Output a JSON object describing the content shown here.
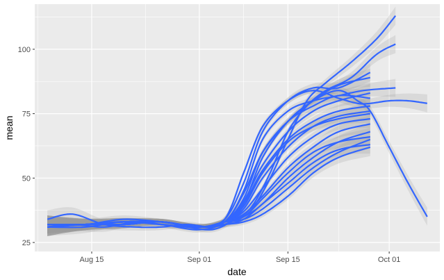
{
  "chart_data": {
    "type": "line",
    "title": "",
    "xlabel": "date",
    "ylabel": "mean",
    "x_ticks": [
      "Aug 15",
      "Sep 01",
      "Sep 15",
      "Oct 01"
    ],
    "x_tick_dates": [
      "2020-08-15",
      "2020-09-01",
      "2020-09-15",
      "2020-10-01"
    ],
    "xlim": [
      "2020-08-06",
      "2020-10-09"
    ],
    "y_ticks": [
      25,
      50,
      75,
      100
    ],
    "ylim": [
      21.5,
      117.5
    ],
    "grid": true,
    "legend": "none",
    "smoothing": "loess fit with grey confidence band",
    "line_color": "#3366FF",
    "band_color": "#999999",
    "panel_color": "#EBEBEB",
    "series": [
      {
        "x": [
          "2020-08-08",
          "2020-08-12",
          "2020-08-17",
          "2020-08-22",
          "2020-08-26",
          "2020-08-30",
          "2020-09-03",
          "2020-09-06",
          "2020-09-09",
          "2020-09-12",
          "2020-09-15",
          "2020-09-18",
          "2020-09-21",
          "2020-09-25",
          "2020-09-29",
          "2020-10-02"
        ],
        "y": [
          34,
          36,
          32,
          31,
          31,
          32,
          31,
          33,
          37,
          49,
          65,
          80,
          87,
          95,
          104,
          113
        ]
      },
      {
        "x": [
          "2020-08-08",
          "2020-08-12",
          "2020-08-17",
          "2020-08-22",
          "2020-08-26",
          "2020-08-30",
          "2020-09-03",
          "2020-09-06",
          "2020-09-09",
          "2020-09-12",
          "2020-09-15",
          "2020-09-18",
          "2020-09-21",
          "2020-09-25",
          "2020-09-29",
          "2020-10-02"
        ],
        "y": [
          31,
          32,
          31,
          33,
          32,
          31,
          30,
          33,
          38,
          51,
          68,
          78,
          84,
          89,
          98,
          102
        ]
      },
      {
        "x": [
          "2020-08-08",
          "2020-08-14",
          "2020-08-20",
          "2020-08-26",
          "2020-09-01",
          "2020-09-05",
          "2020-09-08",
          "2020-09-11",
          "2020-09-15",
          "2020-09-19",
          "2020-09-23",
          "2020-09-27",
          "2020-10-02"
        ],
        "y": [
          32,
          32,
          34,
          33,
          31,
          33,
          45,
          65,
          76,
          80,
          82,
          84,
          85
        ]
      },
      {
        "x": [
          "2020-08-08",
          "2020-08-14",
          "2020-08-20",
          "2020-08-26",
          "2020-09-01",
          "2020-09-05",
          "2020-09-08",
          "2020-09-11",
          "2020-09-15",
          "2020-09-19",
          "2020-09-23",
          "2020-09-26",
          "2020-09-28",
          "2020-10-01",
          "2020-10-04",
          "2020-10-07"
        ],
        "y": [
          31,
          31,
          33,
          32,
          30,
          34,
          52,
          70,
          80,
          84,
          81,
          79,
          79,
          80,
          80,
          79
        ]
      },
      {
        "x": [
          "2020-08-08",
          "2020-08-14",
          "2020-08-20",
          "2020-08-26",
          "2020-09-01",
          "2020-09-05",
          "2020-09-08",
          "2020-09-11",
          "2020-09-15",
          "2020-09-19",
          "2020-09-23",
          "2020-09-26",
          "2020-09-28",
          "2020-10-01",
          "2020-10-04",
          "2020-10-07"
        ],
        "y": [
          32,
          32,
          32,
          33,
          31,
          33,
          40,
          58,
          72,
          80,
          84,
          80,
          76,
          62,
          48,
          35
        ]
      },
      {
        "x": [
          "2020-08-08",
          "2020-08-14",
          "2020-08-20",
          "2020-08-26",
          "2020-09-01",
          "2020-09-05",
          "2020-09-08",
          "2020-09-11",
          "2020-09-15",
          "2020-09-19",
          "2020-09-23",
          "2020-09-28"
        ],
        "y": [
          31,
          32,
          33,
          32,
          31,
          34,
          48,
          68,
          80,
          85,
          85,
          91
        ]
      },
      {
        "x": [
          "2020-08-08",
          "2020-08-14",
          "2020-08-20",
          "2020-08-26",
          "2020-09-01",
          "2020-09-05",
          "2020-09-08",
          "2020-09-11",
          "2020-09-15",
          "2020-09-19",
          "2020-09-23",
          "2020-09-28"
        ],
        "y": [
          32,
          32,
          33,
          33,
          31,
          33,
          44,
          60,
          72,
          80,
          86,
          89
        ]
      },
      {
        "x": [
          "2020-08-08",
          "2020-08-14",
          "2020-08-20",
          "2020-08-26",
          "2020-09-01",
          "2020-09-05",
          "2020-09-08",
          "2020-09-11",
          "2020-09-15",
          "2020-09-19",
          "2020-09-23",
          "2020-09-28"
        ],
        "y": [
          31,
          32,
          32,
          33,
          31,
          33,
          41,
          55,
          68,
          76,
          80,
          83
        ]
      },
      {
        "x": [
          "2020-08-08",
          "2020-08-14",
          "2020-08-20",
          "2020-08-26",
          "2020-09-01",
          "2020-09-05",
          "2020-09-08",
          "2020-09-11",
          "2020-09-15",
          "2020-09-19",
          "2020-09-23",
          "2020-09-28"
        ],
        "y": [
          32,
          32,
          33,
          33,
          31,
          33,
          40,
          53,
          65,
          72,
          76,
          78
        ]
      },
      {
        "x": [
          "2020-08-08",
          "2020-08-14",
          "2020-08-20",
          "2020-08-26",
          "2020-09-01",
          "2020-09-05",
          "2020-09-08",
          "2020-09-11",
          "2020-09-15",
          "2020-09-19",
          "2020-09-23",
          "2020-09-28"
        ],
        "y": [
          31,
          32,
          32,
          33,
          31,
          33,
          38,
          50,
          62,
          70,
          74,
          76
        ]
      },
      {
        "x": [
          "2020-08-08",
          "2020-08-14",
          "2020-08-20",
          "2020-08-26",
          "2020-09-01",
          "2020-09-05",
          "2020-09-08",
          "2020-09-11",
          "2020-09-15",
          "2020-09-19",
          "2020-09-23",
          "2020-09-28"
        ],
        "y": [
          32,
          32,
          33,
          33,
          31,
          33,
          37,
          46,
          58,
          66,
          71,
          73
        ]
      },
      {
        "x": [
          "2020-08-08",
          "2020-08-14",
          "2020-08-20",
          "2020-08-26",
          "2020-09-01",
          "2020-09-05",
          "2020-09-08",
          "2020-09-11",
          "2020-09-15",
          "2020-09-19",
          "2020-09-23",
          "2020-09-28"
        ],
        "y": [
          31,
          32,
          32,
          33,
          31,
          33,
          36,
          43,
          54,
          62,
          68,
          71
        ]
      },
      {
        "x": [
          "2020-08-08",
          "2020-08-14",
          "2020-08-20",
          "2020-08-26",
          "2020-09-01",
          "2020-09-05",
          "2020-09-08",
          "2020-09-11",
          "2020-09-15",
          "2020-09-19",
          "2020-09-23",
          "2020-09-28"
        ],
        "y": [
          32,
          32,
          33,
          33,
          31,
          33,
          35,
          40,
          50,
          58,
          64,
          68
        ]
      },
      {
        "x": [
          "2020-08-08",
          "2020-08-14",
          "2020-08-20",
          "2020-08-26",
          "2020-09-01",
          "2020-09-05",
          "2020-09-08",
          "2020-09-11",
          "2020-09-15",
          "2020-09-19",
          "2020-09-23",
          "2020-09-28"
        ],
        "y": [
          31,
          32,
          32,
          33,
          31,
          33,
          34,
          38,
          46,
          54,
          60,
          65
        ]
      },
      {
        "x": [
          "2020-08-08",
          "2020-08-14",
          "2020-08-20",
          "2020-08-26",
          "2020-09-01",
          "2020-09-05",
          "2020-09-08",
          "2020-09-11",
          "2020-09-15",
          "2020-09-19",
          "2020-09-23",
          "2020-09-28"
        ],
        "y": [
          32,
          32,
          33,
          33,
          31,
          32,
          33,
          36,
          43,
          52,
          58,
          62
        ]
      },
      {
        "x": [
          "2020-08-08",
          "2020-08-14",
          "2020-08-20",
          "2020-08-26",
          "2020-09-01",
          "2020-09-05",
          "2020-09-08",
          "2020-09-11",
          "2020-09-15",
          "2020-09-19",
          "2020-09-23",
          "2020-09-28"
        ],
        "y": [
          31,
          32,
          32,
          33,
          31,
          33,
          42,
          60,
          72,
          78,
          82,
          81
        ]
      },
      {
        "x": [
          "2020-08-08",
          "2020-08-14",
          "2020-08-20",
          "2020-08-26",
          "2020-09-01",
          "2020-09-05",
          "2020-09-08",
          "2020-09-11",
          "2020-09-15",
          "2020-09-19",
          "2020-09-23",
          "2020-09-28"
        ],
        "y": [
          32,
          32,
          33,
          33,
          31,
          33,
          39,
          52,
          64,
          70,
          73,
          75
        ]
      },
      {
        "x": [
          "2020-08-08",
          "2020-08-14",
          "2020-08-20",
          "2020-08-26",
          "2020-09-01",
          "2020-09-05",
          "2020-09-08",
          "2020-09-11",
          "2020-09-15",
          "2020-09-19",
          "2020-09-23",
          "2020-09-28"
        ],
        "y": [
          31,
          32,
          32,
          33,
          31,
          33,
          35,
          42,
          52,
          60,
          64,
          66
        ]
      },
      {
        "x": [
          "2020-08-08",
          "2020-08-14",
          "2020-08-20",
          "2020-08-26",
          "2020-09-01",
          "2020-09-05",
          "2020-09-08",
          "2020-09-11",
          "2020-09-15",
          "2020-09-19",
          "2020-09-23",
          "2020-09-28"
        ],
        "y": [
          32,
          32,
          33,
          33,
          31,
          32,
          34,
          40,
          48,
          56,
          61,
          63
        ]
      }
    ]
  }
}
